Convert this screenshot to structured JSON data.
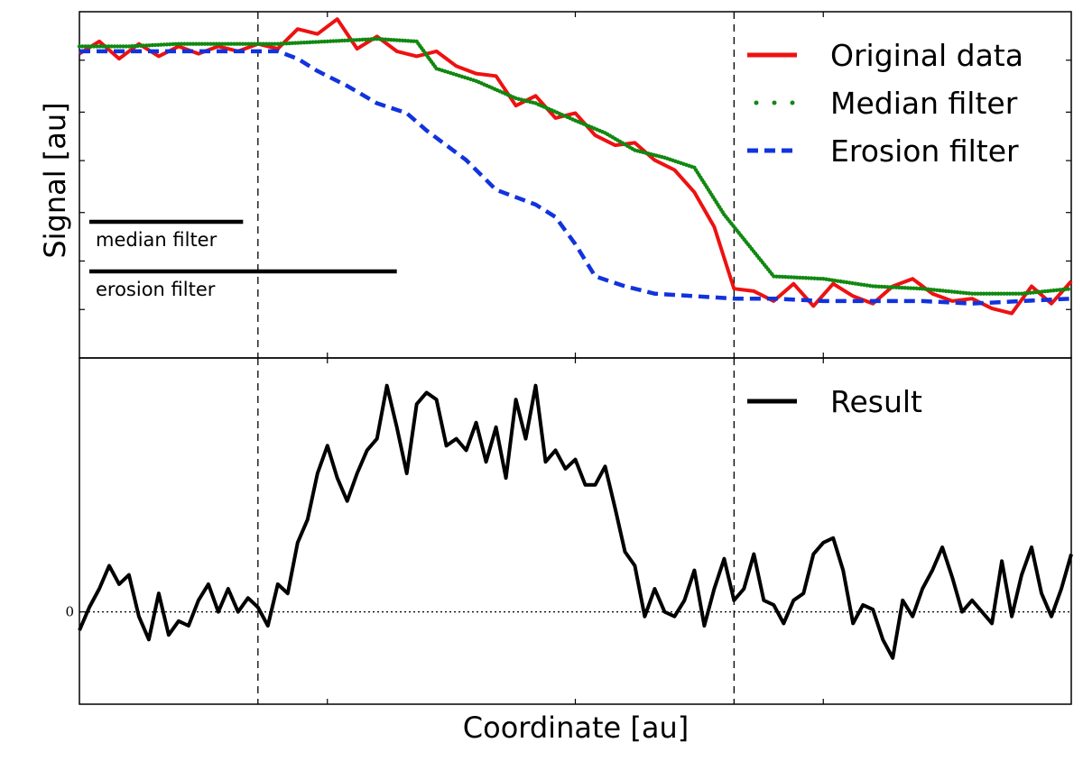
{
  "chart_data": [
    {
      "type": "line",
      "panel": "top",
      "ylabel": "Signal [au]",
      "xlabel": "",
      "xlim": [
        0,
        200
      ],
      "ylim": [
        -0.1,
        1.3
      ],
      "x_ticks": [],
      "y_ticks": [],
      "grid": false,
      "legend_position": "top-right",
      "vlines_x": [
        36,
        132
      ],
      "series": [
        {
          "name": "Original data",
          "color": "#ee1111",
          "style": "solid",
          "x": [
            0,
            4,
            8,
            12,
            16,
            20,
            24,
            28,
            32,
            36,
            40,
            44,
            48,
            52,
            56,
            60,
            64,
            68,
            72,
            76,
            80,
            84,
            88,
            92,
            96,
            100,
            104,
            108,
            112,
            116,
            120,
            124,
            128,
            132,
            136,
            140,
            144,
            148,
            152,
            156,
            160,
            164,
            168,
            172,
            176,
            180,
            184,
            188,
            192,
            196,
            200
          ],
          "values": [
            1.13,
            1.18,
            1.11,
            1.17,
            1.12,
            1.16,
            1.13,
            1.16,
            1.14,
            1.17,
            1.15,
            1.23,
            1.21,
            1.27,
            1.15,
            1.2,
            1.14,
            1.12,
            1.14,
            1.08,
            1.05,
            1.04,
            0.92,
            0.96,
            0.87,
            0.89,
            0.8,
            0.76,
            0.77,
            0.7,
            0.66,
            0.57,
            0.43,
            0.18,
            0.17,
            0.13,
            0.2,
            0.11,
            0.2,
            0.15,
            0.12,
            0.19,
            0.22,
            0.16,
            0.13,
            0.14,
            0.1,
            0.08,
            0.19,
            0.12,
            0.21
          ]
        },
        {
          "name": "Median filter",
          "color": "#118811",
          "style": "dotted",
          "x": [
            0,
            10,
            20,
            30,
            40,
            50,
            60,
            68,
            72,
            80,
            88,
            92,
            100,
            106,
            112,
            118,
            124,
            130,
            140,
            150,
            160,
            170,
            180,
            190,
            200
          ],
          "values": [
            1.16,
            1.16,
            1.17,
            1.17,
            1.17,
            1.18,
            1.19,
            1.18,
            1.07,
            1.02,
            0.95,
            0.93,
            0.86,
            0.81,
            0.74,
            0.71,
            0.67,
            0.48,
            0.23,
            0.22,
            0.19,
            0.18,
            0.16,
            0.16,
            0.18
          ]
        },
        {
          "name": "Erosion filter",
          "color": "#1133dd",
          "style": "dashed",
          "x": [
            0,
            10,
            20,
            30,
            40,
            44,
            48,
            54,
            60,
            66,
            70,
            74,
            78,
            84,
            88,
            92,
            96,
            100,
            104,
            110,
            116,
            124,
            132,
            140,
            150,
            160,
            170,
            180,
            190,
            200
          ],
          "values": [
            1.14,
            1.14,
            1.14,
            1.14,
            1.14,
            1.11,
            1.06,
            1.0,
            0.93,
            0.89,
            0.82,
            0.76,
            0.7,
            0.58,
            0.55,
            0.52,
            0.47,
            0.36,
            0.23,
            0.19,
            0.16,
            0.15,
            0.14,
            0.14,
            0.13,
            0.13,
            0.13,
            0.12,
            0.13,
            0.14
          ]
        }
      ],
      "annotations": [
        {
          "text": "median filter",
          "bar_x": [
            2,
            33
          ]
        },
        {
          "text": "erosion filter",
          "bar_x": [
            2,
            64
          ]
        }
      ]
    },
    {
      "type": "line",
      "panel": "bottom",
      "xlabel": "Coordinate [au]",
      "ylabel": "",
      "xlim": [
        0,
        200
      ],
      "ylim": [
        -0.4,
        1.1
      ],
      "x_ticks": [],
      "y_ticks": [
        {
          "value": 0,
          "label": "0"
        }
      ],
      "grid": false,
      "legend_position": "top-right",
      "vlines_x": [
        36,
        132
      ],
      "hline_y": 0,
      "series": [
        {
          "name": "Result",
          "color": "#000000",
          "style": "solid",
          "x": [
            0,
            2,
            4,
            6,
            8,
            10,
            12,
            14,
            16,
            18,
            20,
            22,
            24,
            26,
            28,
            30,
            32,
            34,
            36,
            38,
            40,
            42,
            44,
            46,
            48,
            50,
            52,
            54,
            56,
            58,
            60,
            62,
            64,
            66,
            68,
            70,
            72,
            74,
            76,
            78,
            80,
            82,
            84,
            86,
            88,
            90,
            92,
            94,
            96,
            98,
            100,
            102,
            104,
            106,
            108,
            110,
            112,
            114,
            116,
            118,
            120,
            122,
            124,
            126,
            128,
            130,
            132,
            134,
            136,
            138,
            140,
            142,
            144,
            146,
            148,
            150,
            152,
            154,
            156,
            158,
            160,
            162,
            164,
            166,
            168,
            170,
            172,
            174,
            176,
            178,
            180,
            182,
            184,
            186,
            188,
            190,
            192,
            194,
            196,
            198,
            200
          ],
          "values": [
            -0.08,
            0.02,
            0.1,
            0.2,
            0.12,
            0.16,
            -0.02,
            -0.12,
            0.08,
            -0.1,
            -0.04,
            -0.06,
            0.05,
            0.12,
            0.0,
            0.1,
            0.0,
            0.06,
            0.02,
            -0.06,
            0.12,
            0.08,
            0.3,
            0.4,
            0.6,
            0.72,
            0.58,
            0.48,
            0.6,
            0.7,
            0.75,
            0.98,
            0.8,
            0.6,
            0.9,
            0.95,
            0.92,
            0.72,
            0.75,
            0.7,
            0.82,
            0.65,
            0.8,
            0.58,
            0.92,
            0.75,
            0.98,
            0.65,
            0.7,
            0.62,
            0.66,
            0.55,
            0.55,
            0.63,
            0.45,
            0.26,
            0.2,
            -0.02,
            0.1,
            0.0,
            -0.02,
            0.05,
            0.18,
            -0.06,
            0.1,
            0.23,
            0.05,
            0.1,
            0.25,
            0.05,
            0.03,
            -0.05,
            0.05,
            0.08,
            0.25,
            0.3,
            0.32,
            0.18,
            -0.05,
            0.03,
            0.01,
            -0.12,
            -0.2,
            0.05,
            -0.02,
            0.1,
            0.18,
            0.28,
            0.15,
            0.0,
            0.05,
            0.0,
            -0.05,
            0.22,
            -0.02,
            0.16,
            0.28,
            0.08,
            -0.02,
            0.1,
            0.25
          ]
        }
      ]
    }
  ]
}
